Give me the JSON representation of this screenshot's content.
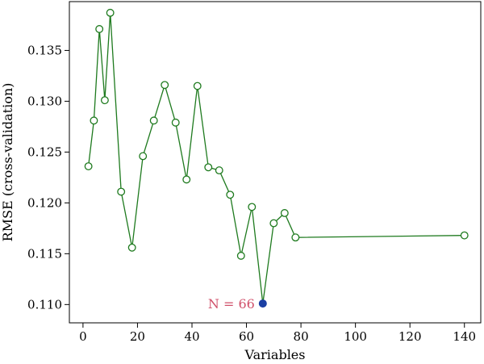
{
  "chart_data": {
    "type": "line",
    "xlabel": "Variables",
    "ylabel": "RMSE (cross-validation)",
    "xlim": [
      -5,
      146
    ],
    "ylim": [
      0.1082,
      0.1398
    ],
    "xticks": [
      0,
      20,
      40,
      60,
      80,
      100,
      120,
      140
    ],
    "yticks": [
      0.11,
      0.115,
      0.12,
      0.125,
      0.13,
      0.135
    ],
    "ytick_labels": [
      "0.110",
      "0.115",
      "0.120",
      "0.125",
      "0.130",
      "0.135"
    ],
    "grid": false,
    "series": [
      {
        "x": [
          2,
          4,
          6,
          8,
          10,
          14,
          18,
          22,
          26,
          30,
          34,
          38,
          42,
          46,
          50,
          54,
          58,
          62,
          66,
          70,
          74,
          78,
          140
        ],
        "y": [
          0.1236,
          0.1281,
          0.1371,
          0.1301,
          0.1387,
          0.1211,
          0.1156,
          0.1246,
          0.1281,
          0.1316,
          0.1279,
          0.1223,
          0.1315,
          0.1235,
          0.1232,
          0.1208,
          0.1148,
          0.1196,
          0.1101,
          0.118,
          0.119,
          0.1166,
          0.1168
        ],
        "color": "#1e7a1e"
      }
    ],
    "highlight": {
      "x": 66,
      "y": 0.1101,
      "color": "#1b3fa3",
      "label": "N = 66",
      "label_color": "#d0506a"
    }
  }
}
